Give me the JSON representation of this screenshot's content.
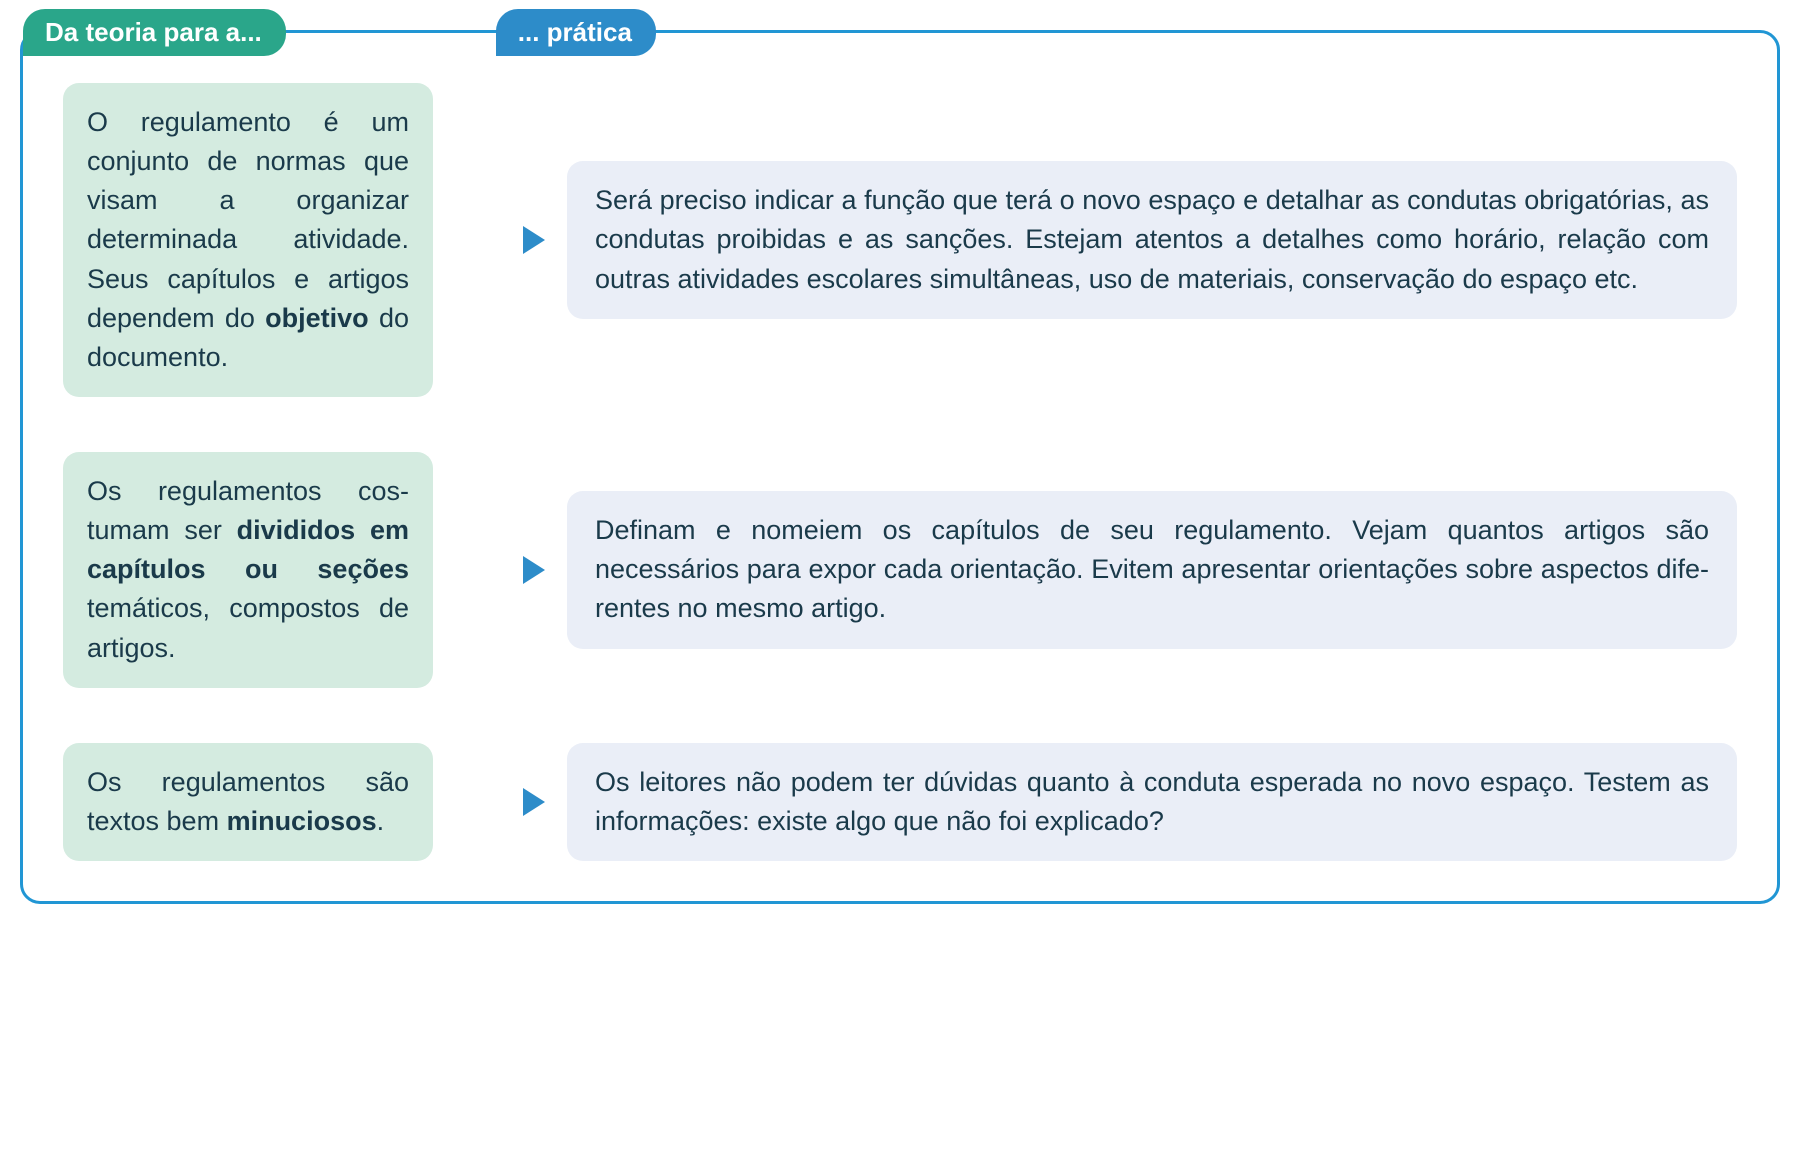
{
  "colors": {
    "teal": "#2aa68a",
    "teal_light": "#d4ebe0",
    "blue": "#2d8cc9",
    "blue_light": "#eaeef7",
    "blue_border": "#2196d4",
    "text": "#1a3a4a",
    "arrow_gradient_start": "#2aa68a",
    "arrow_gradient_end": "#2d8cc9",
    "background": "#ffffff"
  },
  "typography": {
    "tab_fontsize": 26,
    "tab_fontweight": 700,
    "body_fontsize": 27,
    "body_lineheight": 1.45,
    "font_family": "Segoe UI, Helvetica Neue, Arial, sans-serif"
  },
  "layout": {
    "frame_width": 1760,
    "frame_border_radius": 20,
    "frame_border_width": 3,
    "box_border_radius": 16,
    "theory_width": 370,
    "arrow_width": 90,
    "row_gap": 55,
    "tab_radius": 22
  },
  "tabs": {
    "theory": "Da teoria para a...",
    "practice": "... prática"
  },
  "rows": [
    {
      "theory_html": "O regulamento é um conjunto de normas que visam a organi&shy;zar determinada ativi&shy;dade. Seus capítulos e artigos dependem do <b>objetivo</b> do docu&shy;mento.",
      "practice_html": "Será preciso indicar a função que terá o novo espaço e de&shy;talhar as condutas obrigatórias, as condutas proibidas e as sanções. Estejam atentos a detalhes como horário, relação com outras atividades escolares simultâneas, uso de mate&shy;riais, conservação do espaço etc."
    },
    {
      "theory_html": "Os regulamentos cos&shy;tumam ser <b>divididos em capítulos ou se&shy;ções</b> temáticos, com&shy;postos de artigos.",
      "practice_html": "Definam e nomeiem os capítulos de seu regulamento. Ve&shy;jam quantos artigos são necessários para expor cada orien&shy;tação. Evitem apresentar orientações sobre aspectos dife&shy;rentes no mesmo artigo."
    },
    {
      "theory_html": "Os regulamentos são textos bem <b>minucio&shy;sos</b>.",
      "practice_html": "Os leitores não podem ter dúvidas quanto à conduta espe&shy;rada no novo espaço. Testem as informações: existe algo que não foi explicado?"
    }
  ]
}
